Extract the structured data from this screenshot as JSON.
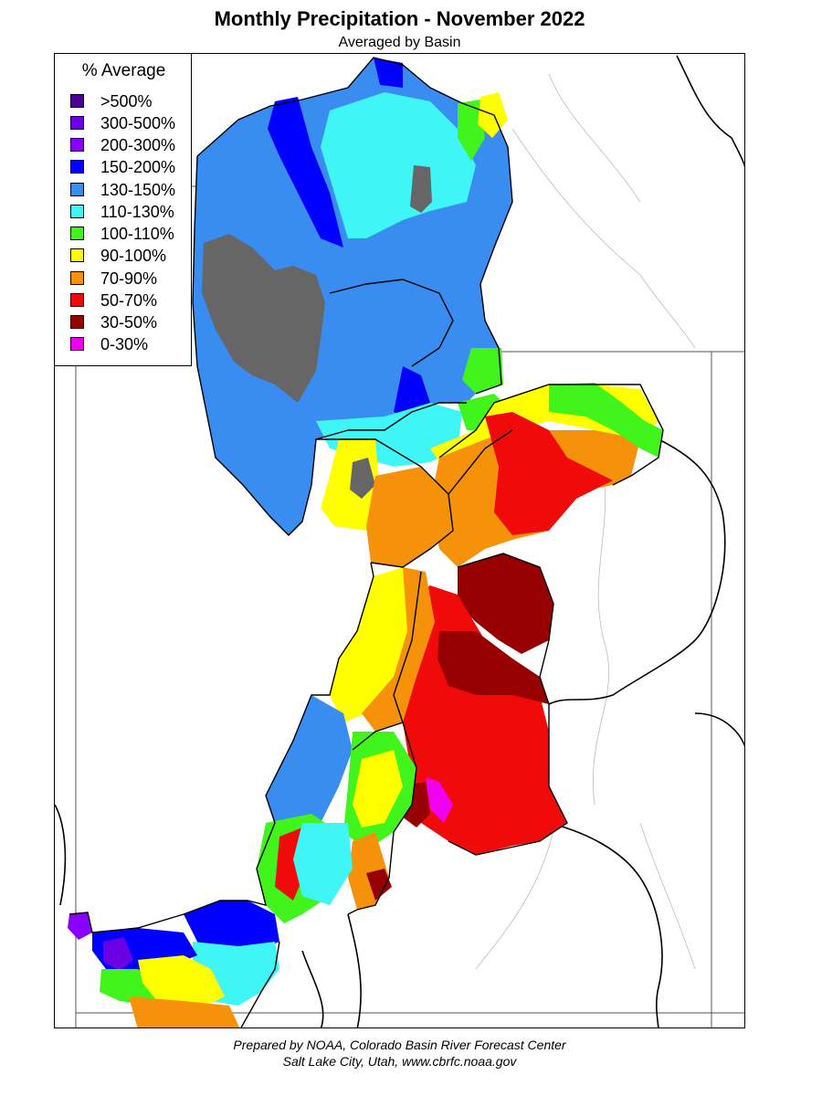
{
  "title": "Monthly Precipitation - November 2022",
  "subtitle": "Averaged by Basin",
  "legend": {
    "title": "% Average",
    "items": [
      {
        "label": ">500%",
        "color": "#4b0096"
      },
      {
        "label": "300-500%",
        "color": "#6a00e6"
      },
      {
        "label": "200-300%",
        "color": "#8a00ff"
      },
      {
        "label": "150-200%",
        "color": "#0000ff"
      },
      {
        "label": "130-150%",
        "color": "#3a8df0"
      },
      {
        "label": "110-130%",
        "color": "#3ff5f5"
      },
      {
        "label": "100-110%",
        "color": "#41f51c"
      },
      {
        "label": "90-100%",
        "color": "#ffff00"
      },
      {
        "label": "70-90%",
        "color": "#f5920a"
      },
      {
        "label": "50-70%",
        "color": "#f00a0a"
      },
      {
        "label": "30-50%",
        "color": "#960000"
      },
      {
        "label": "0-30%",
        "color": "#f000f0"
      }
    ]
  },
  "no_data_color": "#666666",
  "footer": {
    "line1": "Prepared by NOAA, Colorado Basin River Forecast Center",
    "line2": "Salt Lake City, Utah, www.cbrfc.noaa.gov"
  }
}
